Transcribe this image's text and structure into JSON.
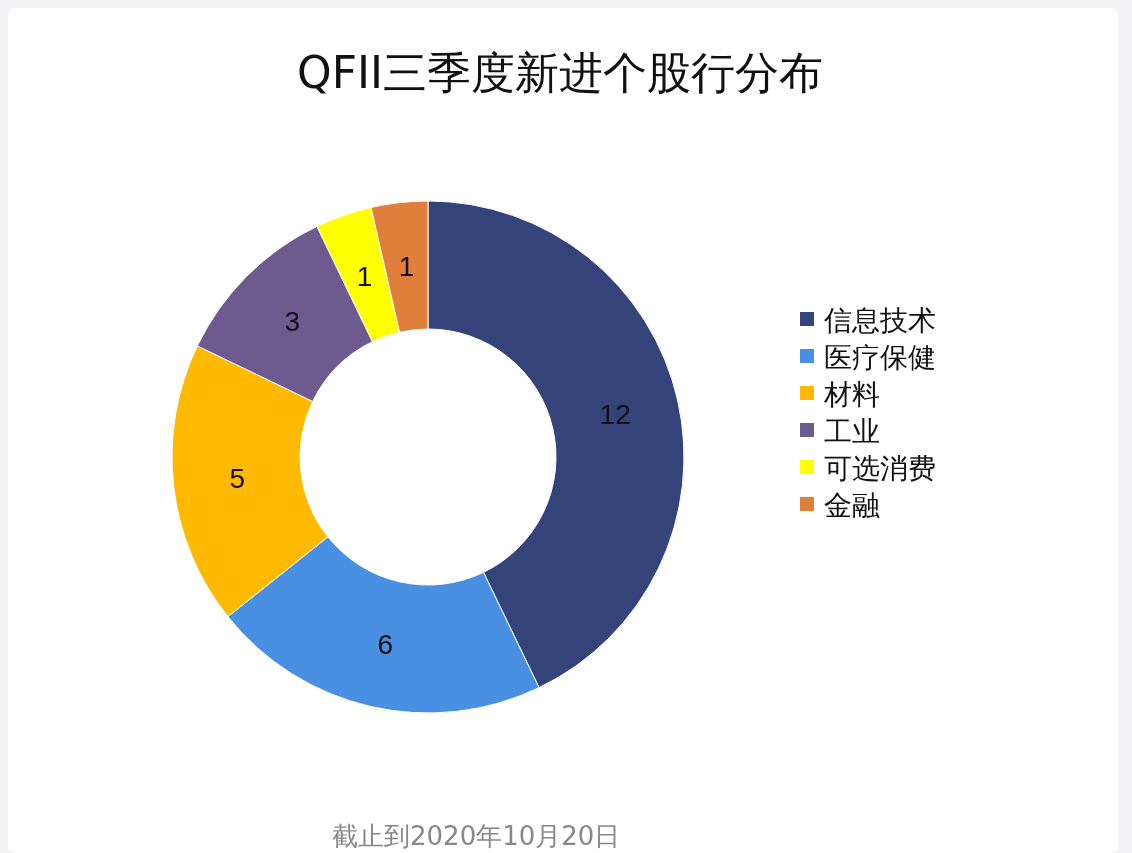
{
  "chart_data": {
    "type": "donut",
    "title": "QFII三季度新进个股行分布",
    "categories": [
      "信息技术",
      "医疗保健",
      "材料",
      "工业",
      "可选消费",
      "金融"
    ],
    "values": [
      12,
      6,
      5,
      3,
      1,
      1
    ],
    "colors": [
      "#35437b",
      "#4a90e2",
      "#ffb900",
      "#6f5a8f",
      "#ffff00",
      "#e07f3c"
    ],
    "data_labels": true,
    "legend": "right",
    "annotations": [
      "截止到2020年10月20日"
    ]
  }
}
